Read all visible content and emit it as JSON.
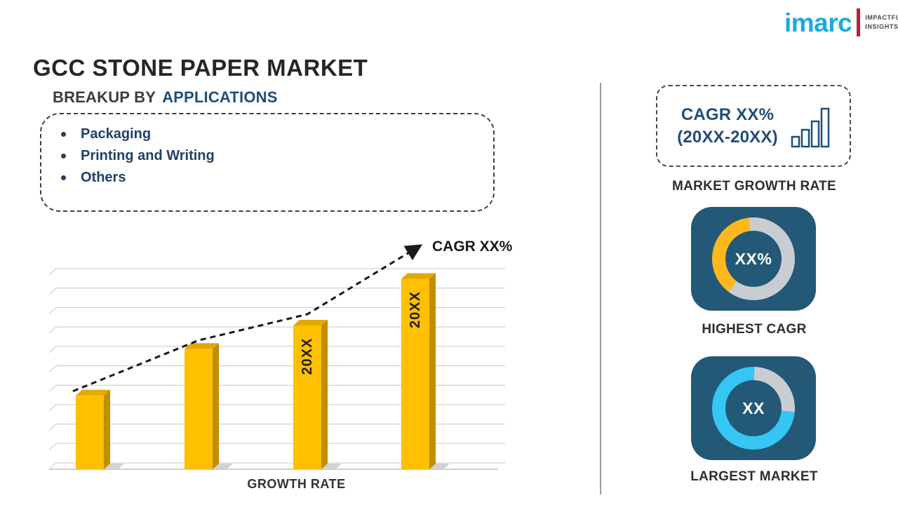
{
  "page": {
    "title": "GCC STONE PAPER MARKET",
    "logo": {
      "brand": "imarc",
      "tagline_line1": "IMPACTFUL",
      "tagline_line2": "INSIGHTS"
    }
  },
  "breakup": {
    "heading_prefix": "BREAKUP BY",
    "heading_highlight": "APPLICATIONS",
    "items": [
      "Packaging",
      "Printing and Writing",
      "Others"
    ]
  },
  "chart_data": [
    {
      "type": "bar",
      "title": "GROWTH RATE",
      "categories": [
        "",
        "",
        "20XX",
        "20XX"
      ],
      "bar_labels": [
        "",
        "",
        "20XX",
        "20XX"
      ],
      "values": [
        38,
        62,
        74,
        98
      ],
      "value_note": "relative bar heights in % of plot height (no numeric axis shown)",
      "xlabel": "GROWTH RATE",
      "ylabel": "",
      "ylim": [
        0,
        100
      ],
      "grid": true,
      "legend": false,
      "bar_color": "#FFC000",
      "trend": {
        "style": "dashed-arrow",
        "annotation": "CAGR XX%"
      }
    },
    {
      "type": "pie",
      "variant": "donut",
      "title": "HIGHEST CAGR",
      "center_text": "XX%",
      "start_deg": 217,
      "slices": [
        {
          "name": "value",
          "pct": 38,
          "color": "#FFB81C"
        },
        {
          "name": "remainder",
          "pct": 62,
          "color": "#C9CDD2"
        }
      ]
    },
    {
      "type": "pie",
      "variant": "donut",
      "title": "LARGEST MARKET",
      "center_text": "XX",
      "start_deg": 95,
      "slices": [
        {
          "name": "value",
          "pct": 74,
          "color": "#35C6F4"
        },
        {
          "name": "remainder",
          "pct": 26,
          "color": "#C9CDD2"
        }
      ]
    }
  ],
  "right_panel": {
    "growth_box": {
      "line1": "CAGR XX%",
      "line2": "(20XX-20XX)",
      "icon": "bar-chart-icon"
    },
    "growth_label": "MARKET GROWTH RATE",
    "highest_cagr_label": "HIGHEST CAGR",
    "largest_market_label": "LARGEST MARKET"
  },
  "colors": {
    "accent_navy": "#1F4E79",
    "bullet_navy": "#1F4068",
    "bar_yellow": "#FFC000",
    "donut_yellow": "#FFB81C",
    "donut_cyan": "#35C6F4",
    "donut_track": "#C9CDD2",
    "card_blue": "#235977",
    "logo_cyan": "#1BAADF",
    "logo_red": "#BE1E2D"
  }
}
